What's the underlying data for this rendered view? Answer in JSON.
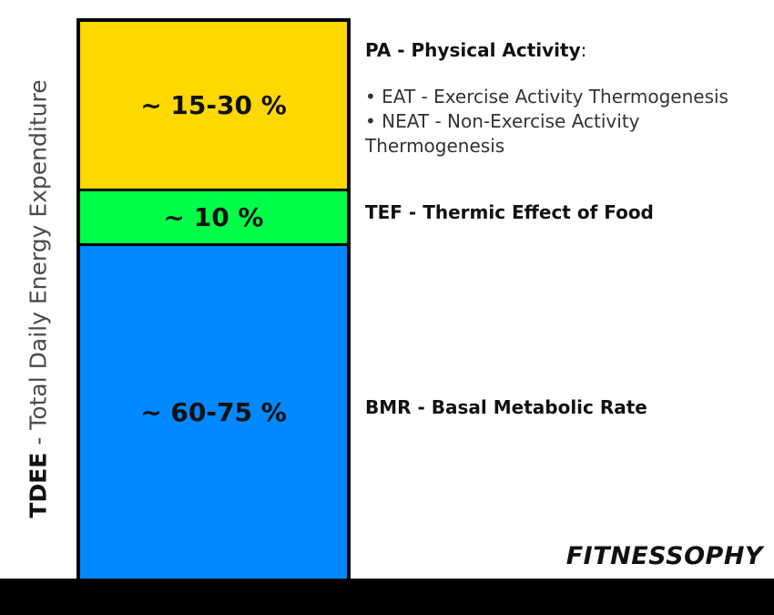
{
  "axis_label": {
    "bold": "TDEE",
    "rest": " - Total Daily Energy Expenditure"
  },
  "segments": [
    {
      "key": "pa",
      "value": "~ 15-30 %",
      "color": "#FFD800"
    },
    {
      "key": "tef",
      "value": "~ 10 %",
      "color": "#00FF48"
    },
    {
      "key": "bmr",
      "value": "~ 60-75 %",
      "color": "#0088FF"
    }
  ],
  "labels": {
    "pa": {
      "title": "PA - Physical Activity",
      "suffix": ":",
      "bullets": [
        "• EAT - Exercise Activity Thermogenesis",
        "• NEAT - Non-Exercise Activity Thermogenesis"
      ]
    },
    "tef": "TEF - Thermic Effect of Food",
    "bmr": "BMR - Basal Metabolic Rate"
  },
  "brand": "FITNESSOPHY",
  "colors": {
    "footer": "#000000",
    "border": "#000000"
  }
}
